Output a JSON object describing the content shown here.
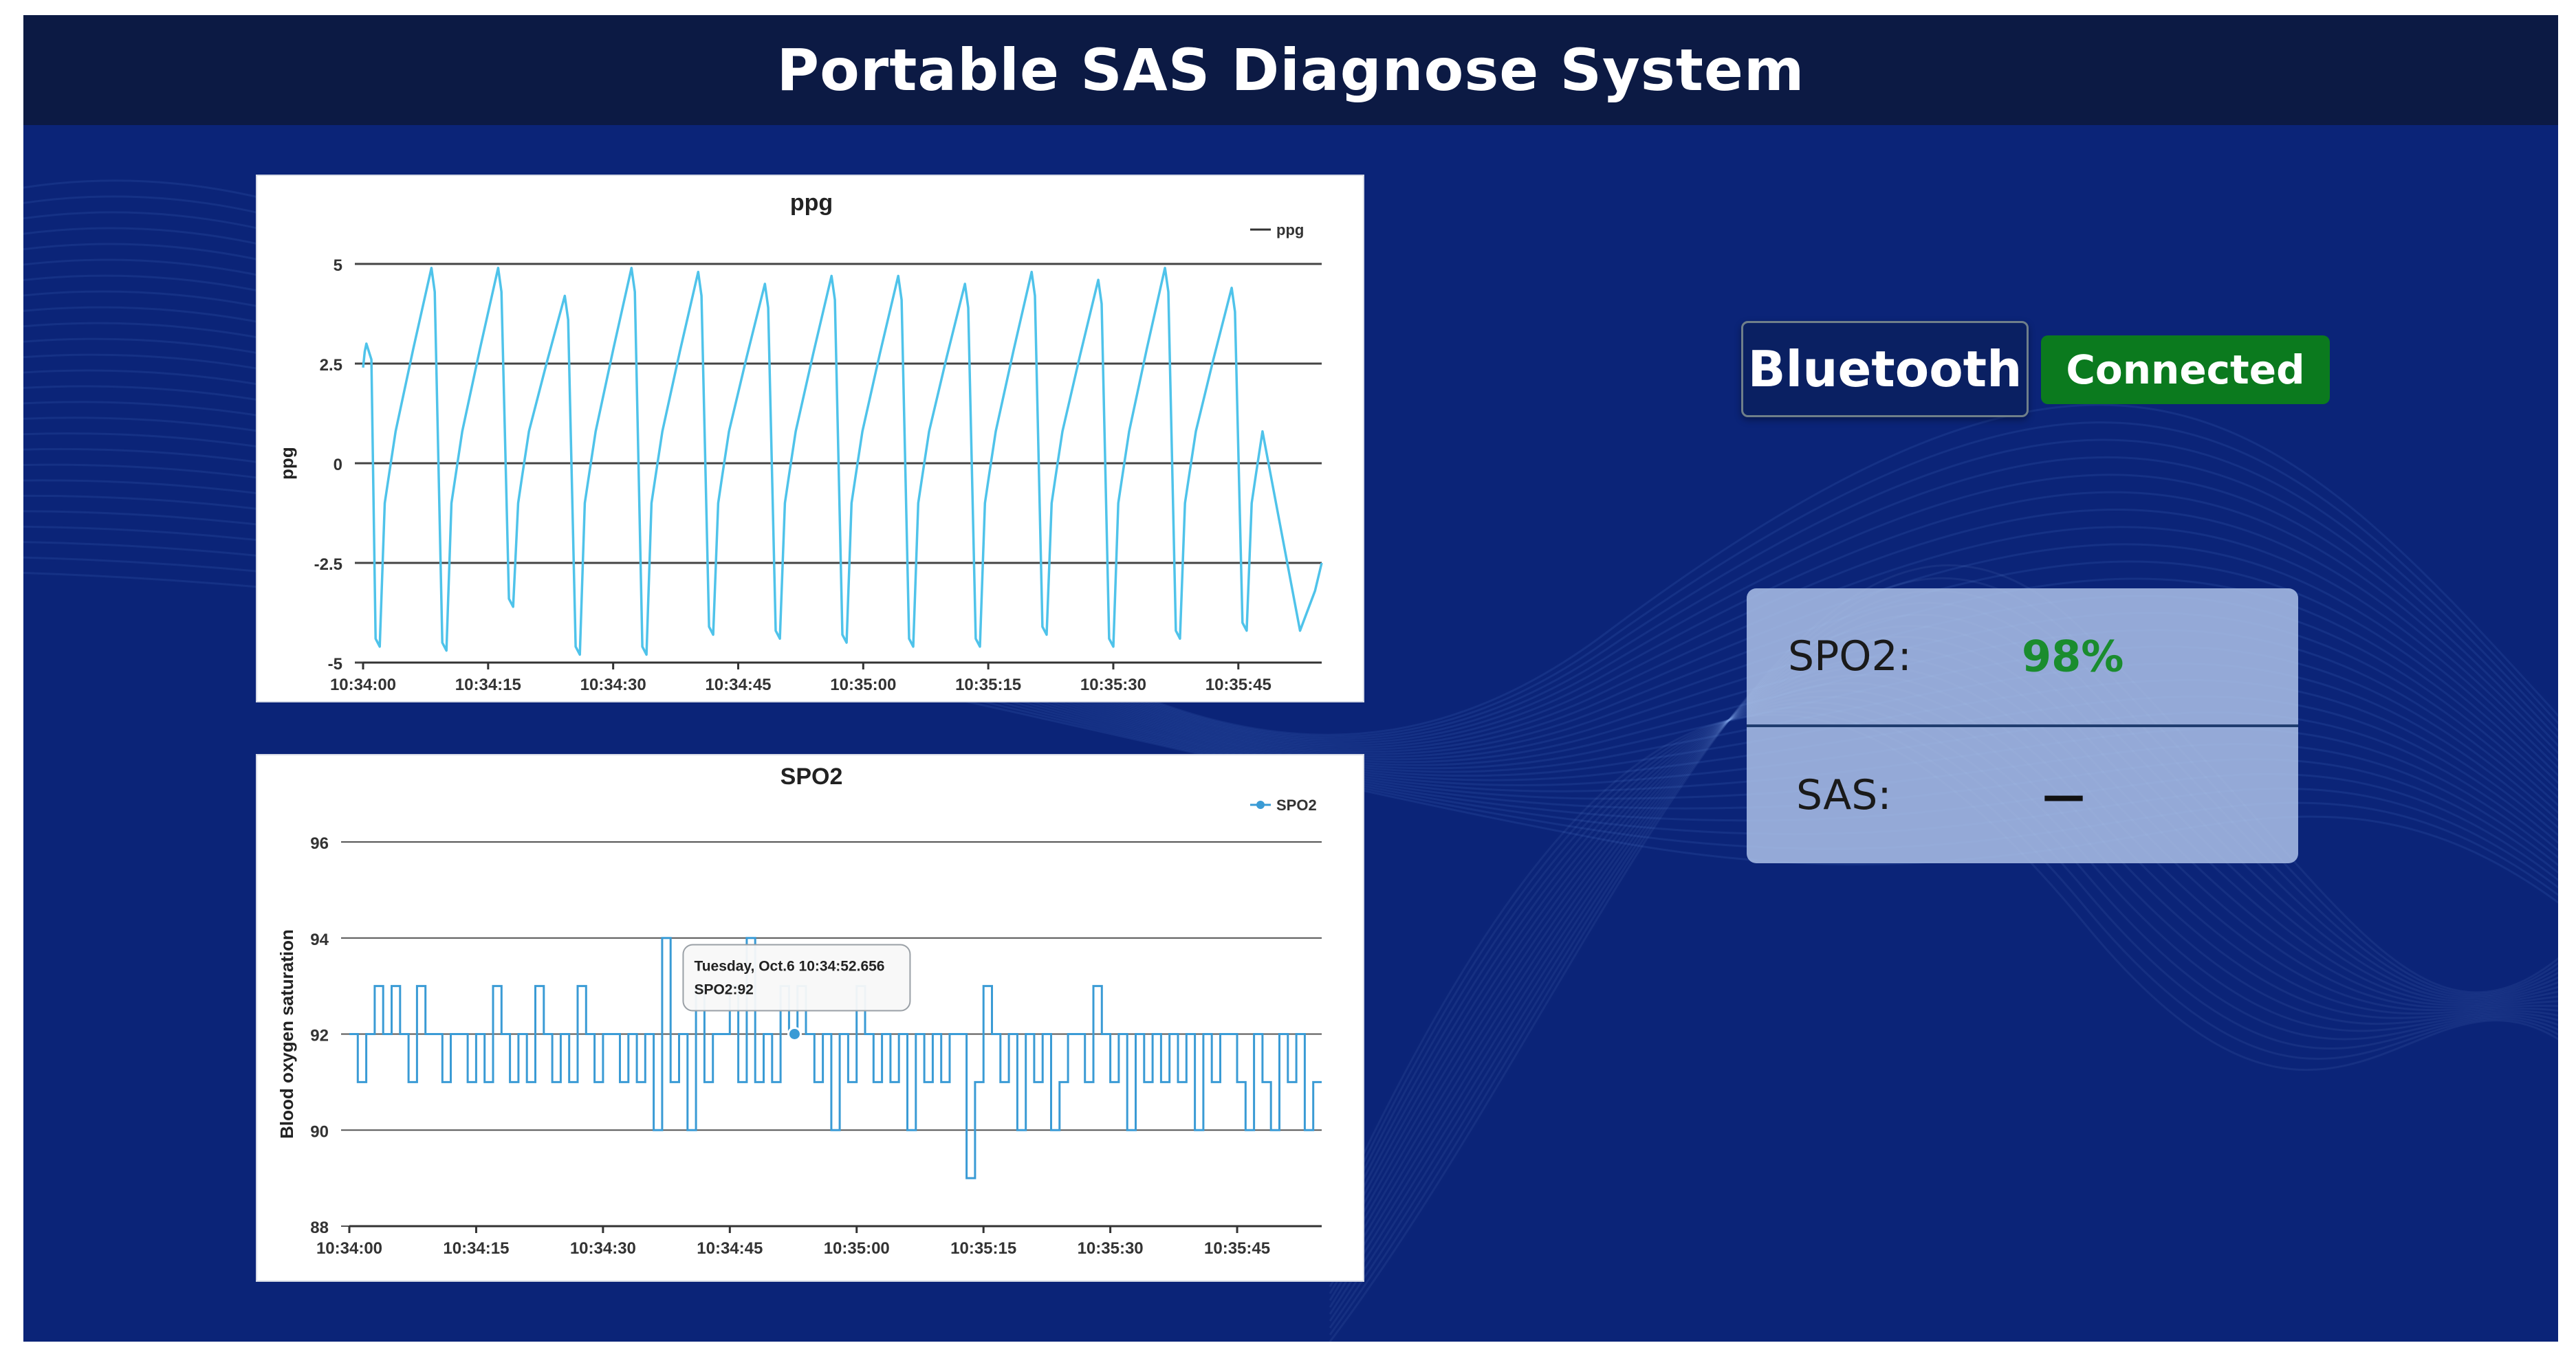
{
  "header": {
    "title": "Portable SAS Diagnose System"
  },
  "bluetooth": {
    "button_label": "Bluetooth",
    "status": "Connected"
  },
  "readouts": {
    "spo2_label": "SPO2:",
    "spo2_value": "98%",
    "sas_label": "SAS:",
    "sas_value": "—"
  },
  "colors": {
    "background": "#0b2478",
    "header": "#0c1a44",
    "series": "#4fc3ea",
    "connected": "#0b7a1e",
    "spo2_value": "#1a8c2e"
  },
  "chart_data": [
    {
      "type": "line",
      "title": "ppg",
      "xlabel": "",
      "ylabel": "ppg",
      "legend": "top-right",
      "grid": true,
      "ylim": [
        -5,
        5
      ],
      "yticks": [
        "5",
        "2.5",
        "0",
        "-2.5",
        "-5"
      ],
      "xlim": [
        "10:34:00",
        "10:35:55"
      ],
      "xticks": [
        "10:34:00",
        "10:34:15",
        "10:34:30",
        "10:34:45",
        "10:35:00",
        "10:35:15",
        "10:35:30",
        "10:35:45"
      ],
      "series": [
        {
          "name": "ppg",
          "beat_times": [
            "10:34:00.5",
            "10:34:08.5",
            "10:34:16.5",
            "10:34:24.5",
            "10:34:32.5",
            "10:34:40.5",
            "10:34:48.5",
            "10:34:56.5",
            "10:35:04.5",
            "10:35:12.5",
            "10:35:20.5",
            "10:35:28.5",
            "10:35:36.5",
            "10:35:44.5"
          ],
          "peaks": [
            3.0,
            4.9,
            4.9,
            4.2,
            4.9,
            4.8,
            4.5,
            4.7,
            4.7,
            4.5,
            4.8,
            4.6,
            4.9,
            4.4
          ],
          "troughs": [
            -4.6,
            -4.7,
            -3.6,
            -4.8,
            -4.8,
            -4.3,
            -4.4,
            -4.5,
            -4.6,
            -4.6,
            -4.3,
            -4.6,
            -4.4,
            -4.2
          ],
          "end_value": -2.5
        }
      ]
    },
    {
      "type": "line",
      "title": "SPO2",
      "xlabel": "",
      "ylabel": "Blood oxygen saturation",
      "legend": "top-right",
      "grid": true,
      "ylim": [
        88,
        96
      ],
      "yticks": [
        "96",
        "94",
        "92",
        "90",
        "88"
      ],
      "xlim": [
        "10:34:00",
        "10:35:55"
      ],
      "xticks": [
        "10:34:00",
        "10:34:15",
        "10:34:30",
        "10:34:45",
        "10:35:00",
        "10:35:15",
        "10:35:30",
        "10:35:45"
      ],
      "tooltip": {
        "line1": "Tuesday, Oct.6 10:34:52.656",
        "line2": "SPO2:92",
        "x": "10:34:52.656",
        "y": 92
      },
      "series": [
        {
          "name": "SPO2",
          "step": true,
          "x": [
            "10:34:00",
            "10:34:01",
            "10:34:02",
            "10:34:03",
            "10:34:04",
            "10:34:05",
            "10:34:06",
            "10:34:07",
            "10:34:08",
            "10:34:09",
            "10:34:10",
            "10:34:11",
            "10:34:12",
            "10:34:13",
            "10:34:14",
            "10:34:15",
            "10:34:16",
            "10:34:17",
            "10:34:18",
            "10:34:19",
            "10:34:20",
            "10:34:21",
            "10:34:22",
            "10:34:23",
            "10:34:24",
            "10:34:25",
            "10:34:26",
            "10:34:27",
            "10:34:28",
            "10:34:29",
            "10:34:30",
            "10:34:31",
            "10:34:32",
            "10:34:33",
            "10:34:34",
            "10:34:35",
            "10:34:36",
            "10:34:37",
            "10:34:38",
            "10:34:39",
            "10:34:40",
            "10:34:41",
            "10:34:42",
            "10:34:43",
            "10:34:44",
            "10:34:45",
            "10:34:46",
            "10:34:47",
            "10:34:48",
            "10:34:49",
            "10:34:50",
            "10:34:51",
            "10:34:52",
            "10:34:53",
            "10:34:54",
            "10:34:55",
            "10:34:56",
            "10:34:57",
            "10:34:58",
            "10:34:59",
            "10:35:00",
            "10:35:01",
            "10:35:02",
            "10:35:03",
            "10:35:04",
            "10:35:05",
            "10:35:06",
            "10:35:07",
            "10:35:08",
            "10:35:09",
            "10:35:10",
            "10:35:11",
            "10:35:12",
            "10:35:13",
            "10:35:14",
            "10:35:15",
            "10:35:16",
            "10:35:17",
            "10:35:18",
            "10:35:19",
            "10:35:20",
            "10:35:21",
            "10:35:22",
            "10:35:23",
            "10:35:24",
            "10:35:25",
            "10:35:26",
            "10:35:27",
            "10:35:28",
            "10:35:29",
            "10:35:30",
            "10:35:31",
            "10:35:32",
            "10:35:33",
            "10:35:34",
            "10:35:35",
            "10:35:36",
            "10:35:37",
            "10:35:38",
            "10:35:39",
            "10:35:40",
            "10:35:41",
            "10:35:42",
            "10:35:43",
            "10:35:44",
            "10:35:45",
            "10:35:46",
            "10:35:47",
            "10:35:48",
            "10:35:49",
            "10:35:50",
            "10:35:51",
            "10:35:52",
            "10:35:53",
            "10:35:54",
            "10:35:55"
          ],
          "values": [
            92,
            91,
            92,
            93,
            92,
            93,
            92,
            91,
            93,
            92,
            92,
            91,
            92,
            92,
            91,
            92,
            91,
            93,
            92,
            91,
            92,
            91,
            93,
            92,
            91,
            92,
            91,
            93,
            92,
            91,
            92,
            92,
            91,
            92,
            91,
            92,
            90,
            94,
            91,
            92,
            90,
            93,
            91,
            92,
            92,
            93,
            91,
            94,
            91,
            92,
            91,
            93,
            92,
            93,
            92,
            91,
            92,
            90,
            92,
            91,
            93,
            92,
            91,
            92,
            91,
            92,
            90,
            92,
            91,
            92,
            91,
            92,
            92,
            89,
            91,
            93,
            92,
            91,
            92,
            90,
            92,
            91,
            92,
            90,
            91,
            92,
            92,
            91,
            93,
            92,
            91,
            92,
            90,
            92,
            91,
            92,
            91,
            92,
            91,
            92,
            90,
            92,
            91,
            92,
            92,
            91,
            90,
            92,
            91,
            90,
            92,
            91,
            92,
            90,
            91,
            91
          ]
        }
      ]
    }
  ]
}
